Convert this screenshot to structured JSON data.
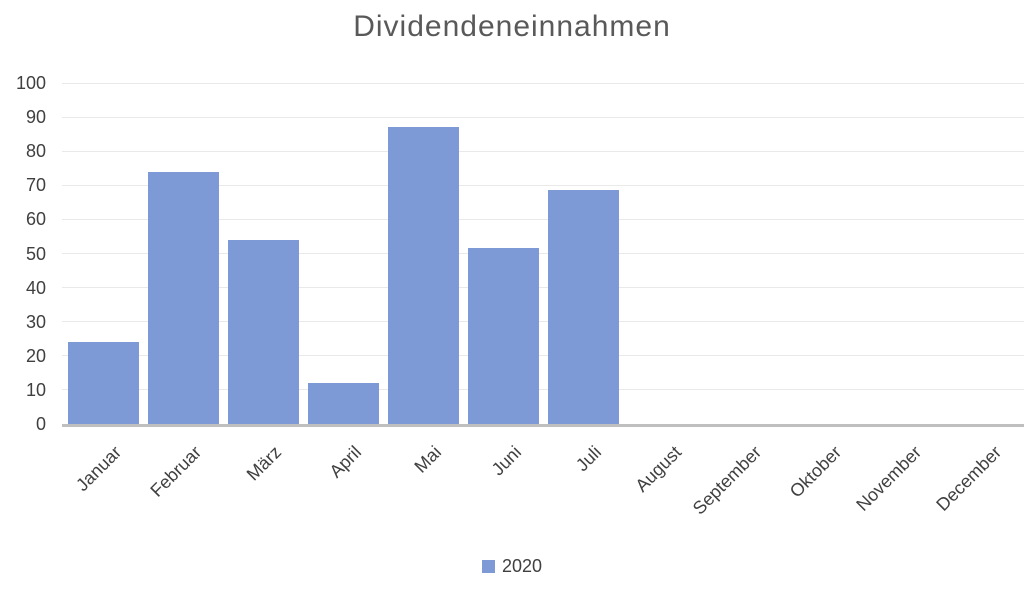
{
  "chart_data": {
    "type": "bar",
    "title": "Dividendeneinnahmen",
    "categories": [
      "Januar",
      "Februar",
      "März",
      "April",
      "Mai",
      "Juni",
      "Juli",
      "August",
      "September",
      "Oktober",
      "November",
      "December"
    ],
    "series": [
      {
        "name": "2020",
        "values": [
          24,
          74,
          54,
          12,
          87,
          51.5,
          68.5,
          0,
          0,
          0,
          0,
          0
        ]
      }
    ],
    "xlabel": "",
    "ylabel": "",
    "ylim": [
      0,
      100
    ],
    "ytick_step": 10,
    "ytick_labels": [
      "0",
      "10",
      "20",
      "30",
      "40",
      "50",
      "60",
      "70",
      "80",
      "90",
      "100"
    ],
    "grid": "horizontal",
    "legend_position": "bottom",
    "x_label_rotation_deg": -45,
    "colors": {
      "bar": "#7d9ad6",
      "title_text": "#595959",
      "axis_text": "#404040",
      "gridline": "#e9e9e9",
      "axis_line": "#bfbfbf"
    }
  }
}
